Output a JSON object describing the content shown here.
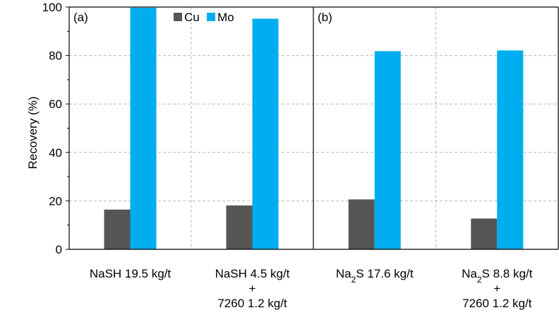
{
  "chart_data": {
    "type": "bar",
    "ylabel": "Recovery (%)",
    "xlabel": "",
    "ylim": [
      0,
      100
    ],
    "yticks": [
      "0",
      "20",
      "40",
      "60",
      "80",
      "100"
    ],
    "grid": "dashed",
    "legend_position": "top-left of panel a",
    "colors": {
      "Cu": "#555555",
      "Mo": "#00aeef"
    },
    "panels": [
      {
        "label": "(a)",
        "categories": [
          {
            "lines": [
              "NaSH 19.5 kg/t"
            ]
          },
          {
            "lines": [
              "NaSH 4.5 kg/t",
              "+",
              "7260 1.2 kg/t"
            ]
          }
        ],
        "series": [
          {
            "name": "Cu",
            "values": [
              16.4,
              18.1
            ]
          },
          {
            "name": "Mo",
            "values": [
              99.7,
              95.2
            ]
          }
        ]
      },
      {
        "label": "(b)",
        "categories": [
          {
            "lines": [
              "Na2S 17.6 kg/t"
            ]
          },
          {
            "lines": [
              "Na2S 8.8 kg/t",
              "+",
              "7260 1.2 kg/t"
            ]
          }
        ],
        "series": [
          {
            "name": "Cu",
            "values": [
              20.6,
              12.7
            ]
          },
          {
            "name": "Mo",
            "values": [
              81.8,
              82.1
            ]
          }
        ]
      }
    ]
  }
}
